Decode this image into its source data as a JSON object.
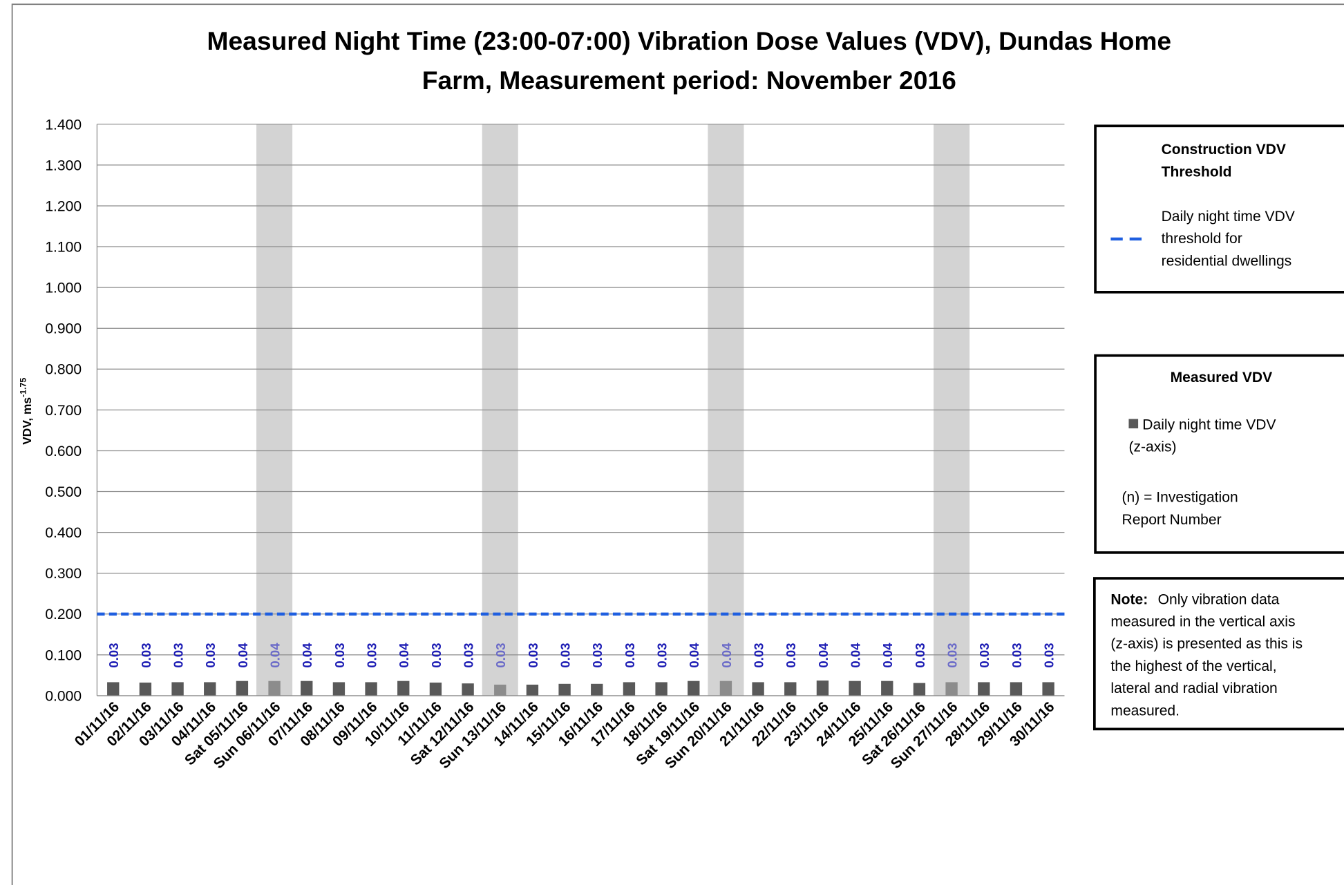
{
  "chart_data": {
    "type": "bar",
    "title": [
      "Measured Night Time (23:00-07:00) Vibration Dose Values (VDV), Dundas Home",
      "Farm, Measurement period: November 2016"
    ],
    "ylabel": {
      "text": "VDV, ms",
      "sup": "-1.75"
    },
    "categories": [
      "01/11/16",
      "02/11/16",
      "03/11/16",
      "04/11/16",
      "Sat 05/11/16",
      "Sun 06/11/16",
      "07/11/16",
      "08/11/16",
      "09/11/16",
      "10/11/16",
      "11/11/16",
      "Sat 12/11/16",
      "Sun 13/11/16",
      "14/11/16",
      "15/11/16",
      "16/11/16",
      "17/11/16",
      "18/11/16",
      "Sat 19/11/16",
      "Sun 20/11/16",
      "21/11/16",
      "22/11/16",
      "23/11/16",
      "24/11/16",
      "25/11/16",
      "Sat 26/11/16",
      "Sun 27/11/16",
      "28/11/16",
      "29/11/16",
      "30/11/16"
    ],
    "series": [
      {
        "name": [
          "Daily night time VDV",
          "(z-axis)"
        ],
        "color": "#595959",
        "values": [
          0.033,
          0.032,
          0.033,
          0.033,
          0.036,
          0.036,
          0.036,
          0.033,
          0.033,
          0.036,
          0.032,
          0.03,
          0.027,
          0.027,
          0.029,
          0.029,
          0.033,
          0.033,
          0.036,
          0.036,
          0.033,
          0.033,
          0.037,
          0.036,
          0.036,
          0.031,
          0.033,
          0.033,
          0.033,
          0.033
        ],
        "value_labels": [
          "0.03",
          "0.03",
          "0.03",
          "0.03",
          "0.04",
          "0.04",
          "0.04",
          "0.03",
          "0.03",
          "0.04",
          "0.03",
          "0.03",
          "0.03",
          "0.03",
          "0.03",
          "0.03",
          "0.03",
          "0.03",
          "0.04",
          "0.04",
          "0.03",
          "0.03",
          "0.04",
          "0.04",
          "0.04",
          "0.03",
          "0.03",
          "0.03",
          "0.03",
          "0.03"
        ]
      }
    ],
    "threshold": {
      "name": [
        "Daily night time VDV",
        "threshold for",
        "residential dwellings"
      ],
      "value": 0.2,
      "color": "#1f5fe0"
    },
    "highlight_indices": [
      5,
      12,
      19,
      26
    ],
    "highlight_color": "#d3d3d3",
    "highlight_bar_color": "#8c8c8c",
    "ylim": [
      0,
      1.4
    ],
    "yticks": [
      {
        "value": 0,
        "label": "0.000"
      },
      {
        "value": 0.1,
        "label": "0.100"
      },
      {
        "value": 0.2,
        "label": "0.200"
      },
      {
        "value": 0.3,
        "label": "0.300"
      },
      {
        "value": 0.4,
        "label": "0.400"
      },
      {
        "value": 0.5,
        "label": "0.500"
      },
      {
        "value": 0.6,
        "label": "0.600"
      },
      {
        "value": 0.7,
        "label": "0.700"
      },
      {
        "value": 0.8,
        "label": "0.800"
      },
      {
        "value": 0.9,
        "label": "0.900"
      },
      {
        "value": 1.0,
        "label": "1.000"
      },
      {
        "value": 1.1,
        "label": "1.100"
      },
      {
        "value": 1.2,
        "label": "1.200"
      },
      {
        "value": 1.3,
        "label": "1.300"
      },
      {
        "value": 1.4,
        "label": "1.400"
      }
    ],
    "grid": true,
    "legend": {
      "threshold_title": [
        "Construction VDV",
        "Threshold"
      ],
      "measured_title": "Measured VDV",
      "investigation": [
        "(n) = Investigation",
        "Report Number"
      ]
    },
    "note": {
      "label": "Note:",
      "lines": [
        "Only vibration data",
        "measured in the vertical axis",
        "(z-axis) is presented as this is",
        "the highest of the vertical,",
        "lateral and radial vibration",
        "measured."
      ]
    }
  }
}
